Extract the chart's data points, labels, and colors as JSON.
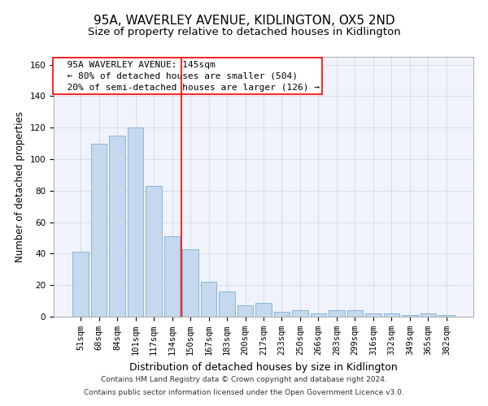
{
  "title": "95A, WAVERLEY AVENUE, KIDLINGTON, OX5 2ND",
  "subtitle": "Size of property relative to detached houses in Kidlington",
  "xlabel": "Distribution of detached houses by size in Kidlington",
  "ylabel": "Number of detached properties",
  "categories": [
    "51sqm",
    "68sqm",
    "84sqm",
    "101sqm",
    "117sqm",
    "134sqm",
    "150sqm",
    "167sqm",
    "183sqm",
    "200sqm",
    "217sqm",
    "233sqm",
    "250sqm",
    "266sqm",
    "283sqm",
    "299sqm",
    "316sqm",
    "332sqm",
    "349sqm",
    "365sqm",
    "382sqm"
  ],
  "values": [
    41,
    110,
    115,
    120,
    83,
    51,
    43,
    22,
    16,
    7,
    9,
    3,
    4,
    2,
    4,
    4,
    2,
    2,
    1,
    2,
    1
  ],
  "bar_color": "#c5d8ed",
  "bar_edge_color": "#7aadd4",
  "vline_x": 5.5,
  "vline_color": "red",
  "annotation_text": "  95A WAVERLEY AVENUE: 145sqm\n  ← 80% of detached houses are smaller (504)\n  20% of semi-detached houses are larger (126) →",
  "annotation_box_color": "white",
  "annotation_box_edge_color": "red",
  "ylim": [
    0,
    165
  ],
  "yticks": [
    0,
    20,
    40,
    60,
    80,
    100,
    120,
    140,
    160
  ],
  "footer_line1": "Contains HM Land Registry data © Crown copyright and database right 2024.",
  "footer_line2": "Contains public sector information licensed under the Open Government Licence v3.0.",
  "title_fontsize": 11,
  "subtitle_fontsize": 9.5,
  "xlabel_fontsize": 9,
  "ylabel_fontsize": 8.5,
  "tick_fontsize": 7.5,
  "annotation_fontsize": 8,
  "footer_fontsize": 6.5,
  "bg_color": "#f0f4fa",
  "grid_color": "#d0d8e8"
}
